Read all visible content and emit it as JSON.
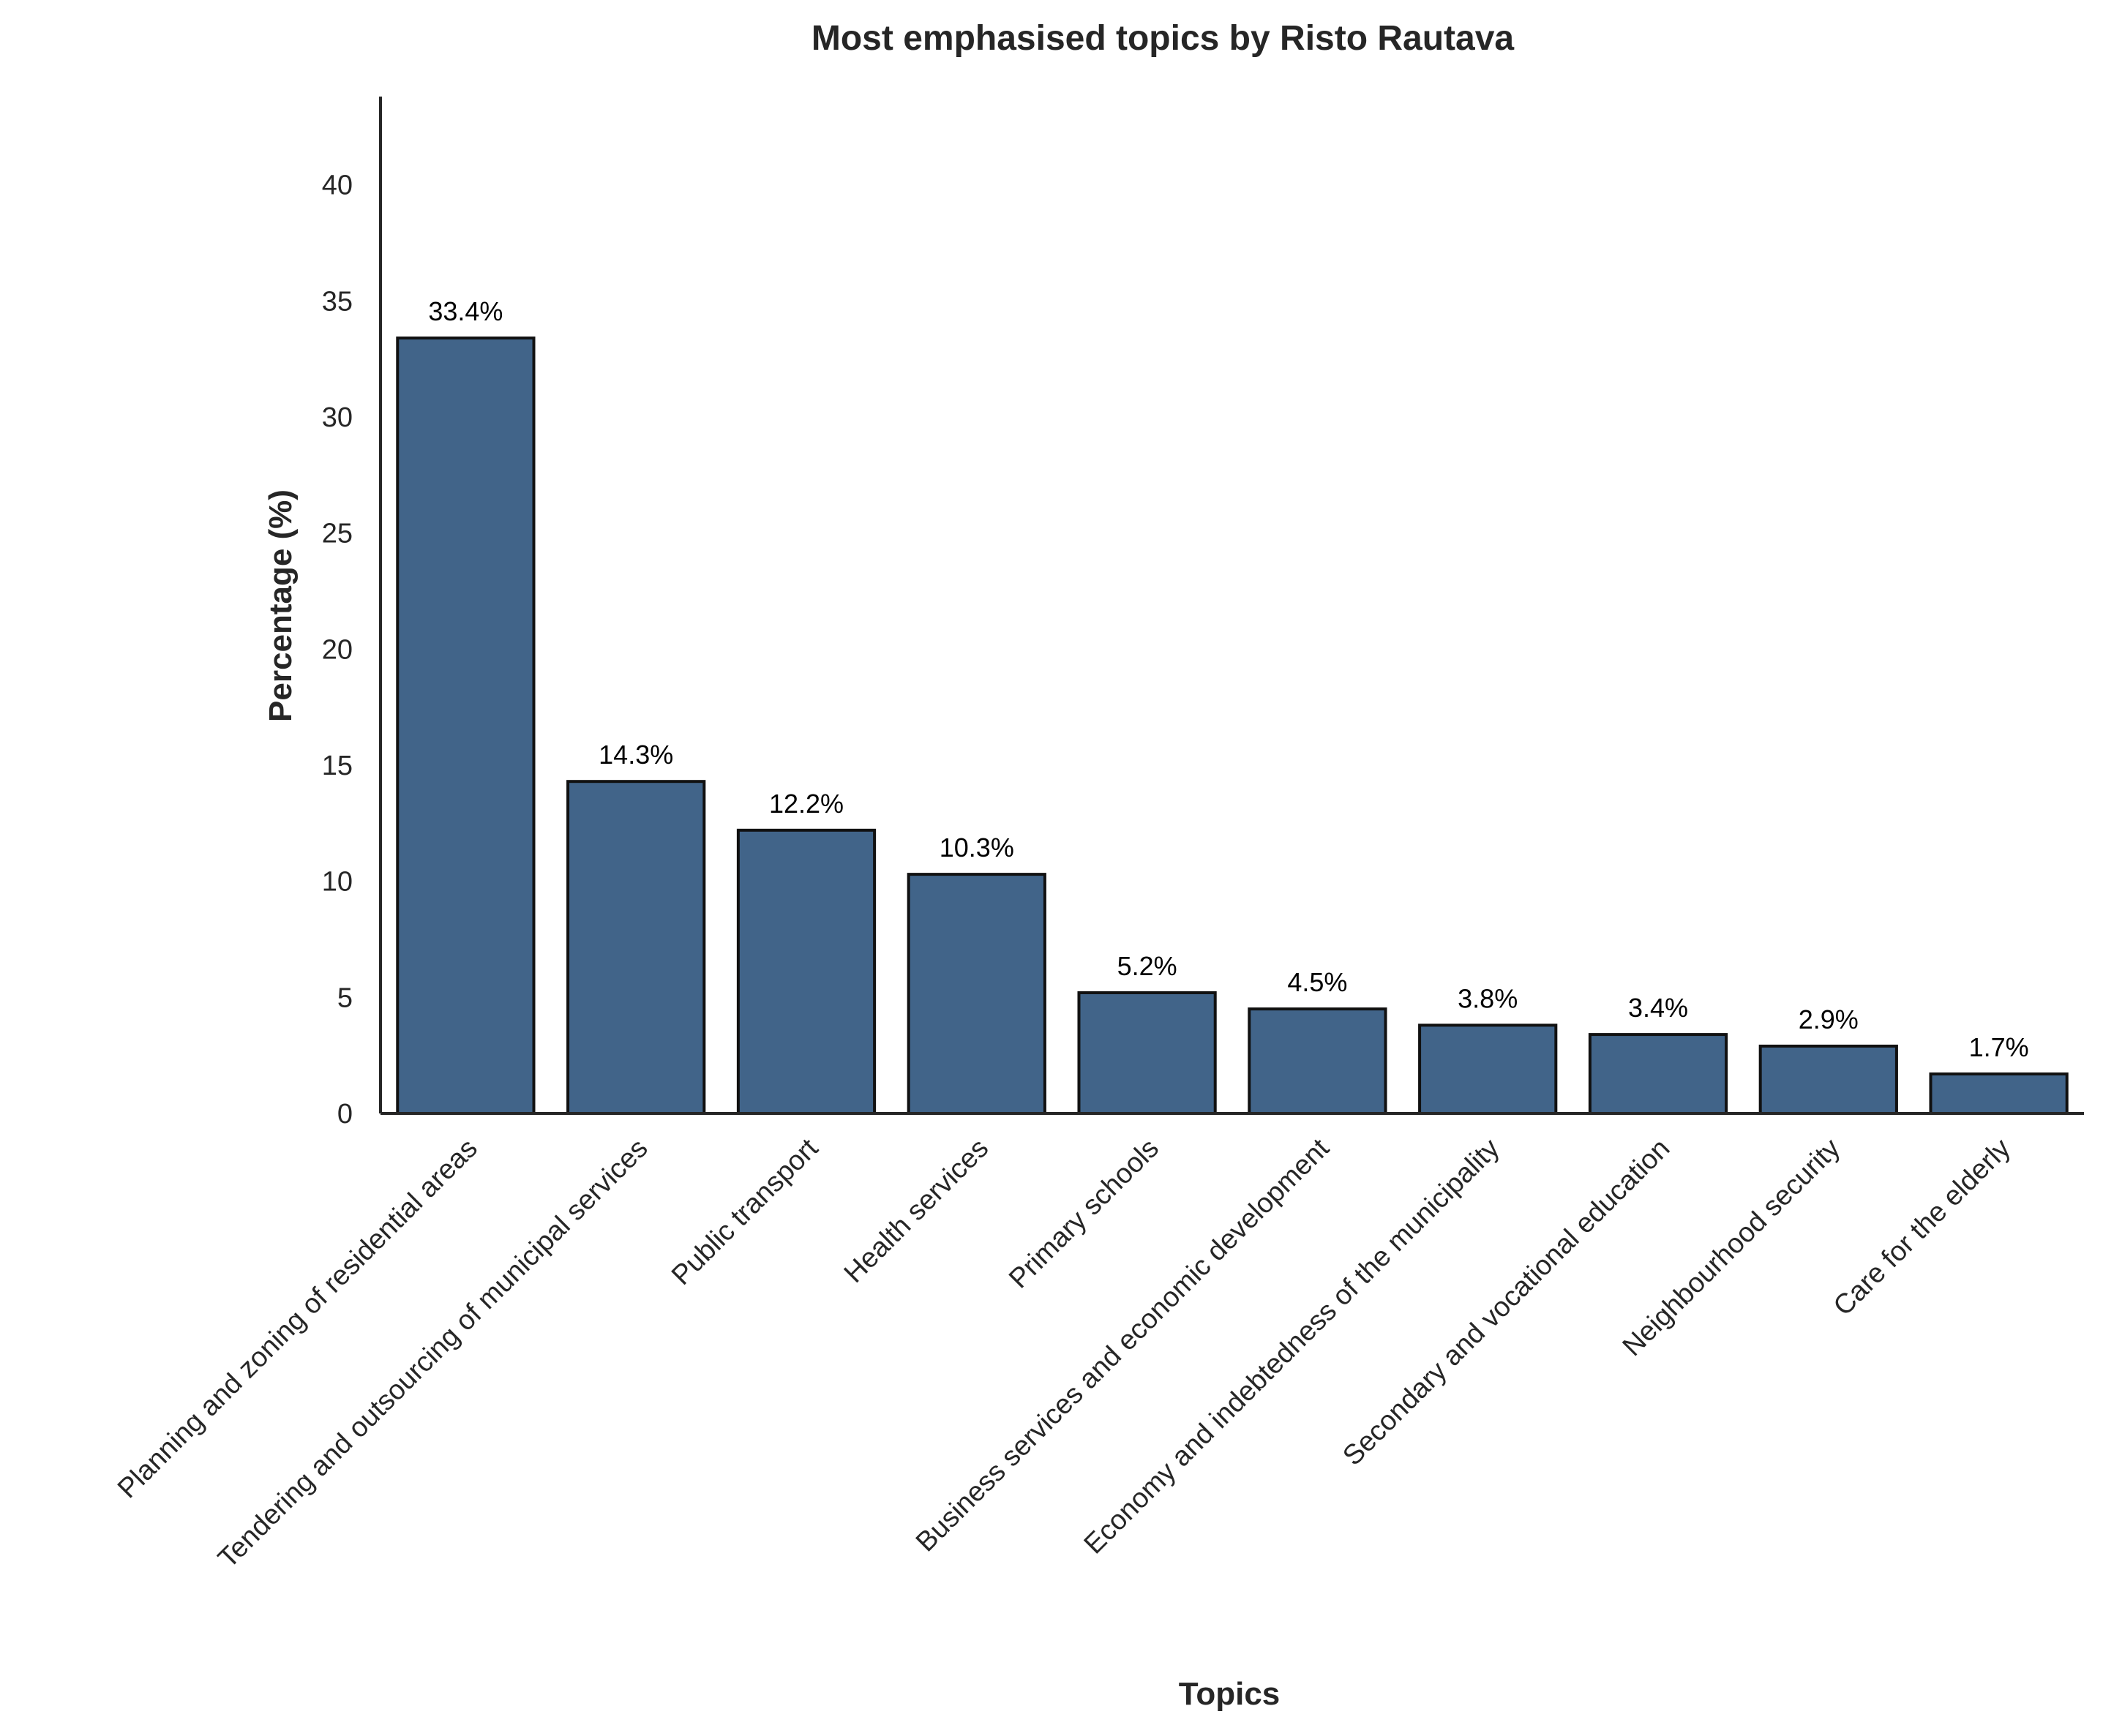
{
  "chart_data": {
    "type": "bar",
    "title": "Most emphasised topics by Risto Rautava",
    "xlabel": "Topics",
    "ylabel": "Percentage (%)",
    "ylim": [
      0,
      43.8
    ],
    "yticks": [
      0,
      5,
      10,
      15,
      20,
      25,
      30,
      35,
      40
    ],
    "grid": false,
    "categories": [
      "Planning and zoning of residential areas",
      "Tendering and outsourcing of municipal services",
      "Public transport",
      "Health services",
      "Primary schools",
      "Business services and economic development",
      "Economy and indebtedness of the municipality",
      "Secondary and vocational education",
      "Neighbourhood security",
      "Care for the elderly"
    ],
    "values": [
      33.4,
      14.3,
      12.2,
      10.3,
      5.2,
      4.5,
      3.8,
      3.4,
      2.9,
      1.7
    ],
    "data_labels": [
      "33.4%",
      "14.3%",
      "12.2%",
      "10.3%",
      "5.2%",
      "4.5%",
      "3.8%",
      "3.4%",
      "2.9%",
      "1.7%"
    ],
    "colors": {
      "bar_fill": "#416489",
      "bar_edge": "#111111"
    }
  }
}
